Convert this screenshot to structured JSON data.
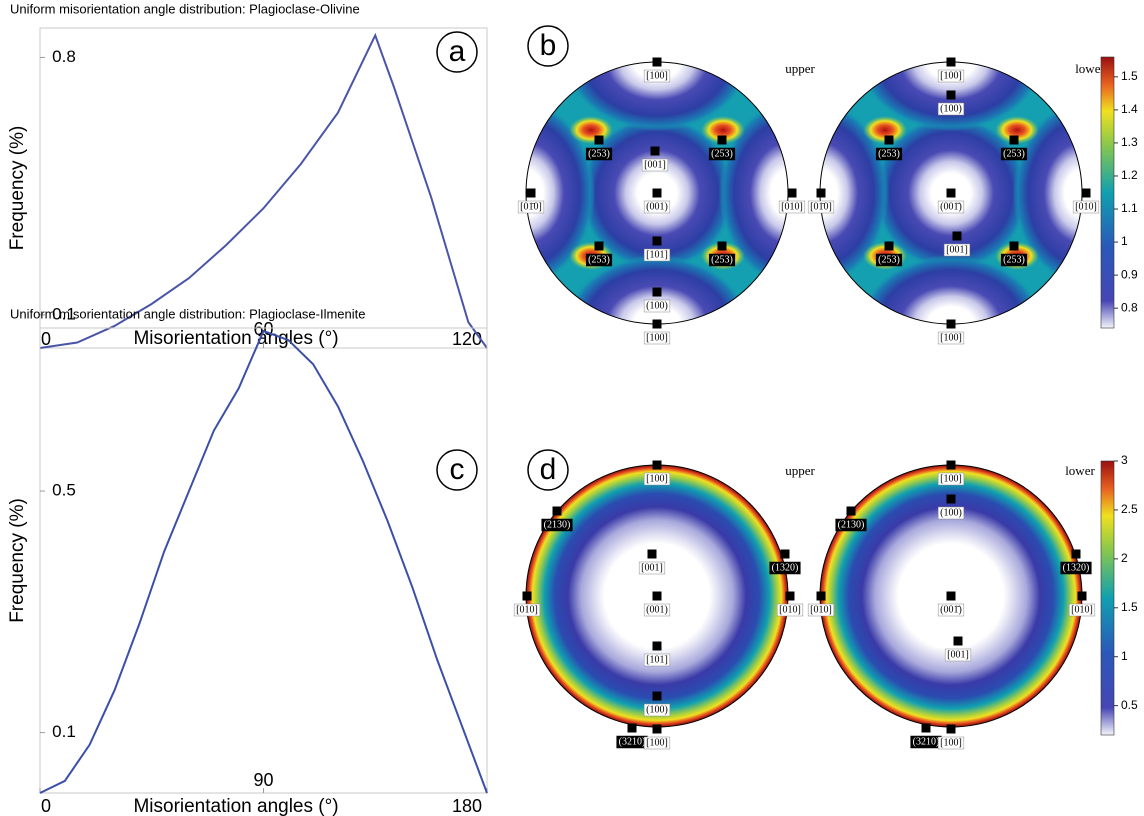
{
  "chart_data": [
    {
      "type": "line",
      "panel_label": "a",
      "title": "Uniform misorientation angle distribution: Plagioclase-Olivine",
      "x_label": "Misorientation angles (°)",
      "y_label": "Frequency (%)",
      "x": [
        0,
        10,
        20,
        30,
        40,
        50,
        60,
        70,
        80,
        90,
        95,
        100,
        105,
        110,
        115,
        120
      ],
      "series": [
        {
          "color": "#4a55a8",
          "values": [
            0.01,
            0.025,
            0.07,
            0.13,
            0.2,
            0.29,
            0.39,
            0.51,
            0.65,
            0.86,
            0.72,
            0.57,
            0.42,
            0.25,
            0.08,
            0.01
          ]
        }
      ],
      "xlim": [
        0,
        120
      ],
      "ylim": [
        0.01,
        0.88
      ],
      "xticks": [
        0,
        60,
        120
      ],
      "yticks": [
        0.1,
        0.8
      ]
    },
    {
      "type": "pole_figure",
      "panel_label": "b",
      "style": "cubic",
      "projections": [
        {
          "name": "upper",
          "labels": [
            "[100]",
            "(253)",
            "(253)",
            "[001]",
            "[01̄0]",
            "(001)",
            "[010]",
            "(253)",
            "[101]",
            "(253)",
            "(100)",
            "[100]"
          ]
        },
        {
          "name": "lower",
          "labels": [
            "[100]",
            "(100)",
            "(253)",
            "(253)",
            "[01̄0]",
            "(001̄)",
            "[010]",
            "(253)",
            "[001]",
            "(253)",
            "[100]"
          ]
        }
      ],
      "colorbar": {
        "lim": [
          0.74,
          1.56
        ],
        "ticks": [
          0.8,
          0.9,
          1,
          1.1,
          1.2,
          1.3,
          1.4,
          1.5
        ]
      }
    },
    {
      "type": "line",
      "panel_label": "c",
      "title": "Uniform misorientation angle distribution: Plagioclase-Ilmenite",
      "x_label": "Misorientation angles (°)",
      "y_label": "Frequency (%)",
      "x": [
        0,
        10,
        20,
        30,
        40,
        50,
        60,
        70,
        80,
        90,
        100,
        110,
        120,
        130,
        140,
        150,
        160,
        170,
        180
      ],
      "series": [
        {
          "color": "#3a4fa8",
          "values": [
            0,
            0.02,
            0.08,
            0.17,
            0.28,
            0.4,
            0.5,
            0.6,
            0.67,
            0.765,
            0.75,
            0.71,
            0.64,
            0.55,
            0.45,
            0.34,
            0.22,
            0.11,
            0
          ]
        }
      ],
      "xlim": [
        0,
        180
      ],
      "ylim": [
        0,
        0.77
      ],
      "xticks": [
        0,
        90,
        180
      ],
      "yticks": [
        0.1,
        0.5
      ]
    },
    {
      "type": "pole_figure",
      "panel_label": "d",
      "style": "radial",
      "projections": [
        {
          "name": "upper",
          "labels": [
            "[100]",
            "(2130)",
            "(1320)",
            "[001]",
            "[010]",
            "(001)",
            "[010]",
            "[101]",
            "(100)",
            "(3210)",
            "[100]"
          ]
        },
        {
          "name": "lower",
          "labels": [
            "[100]",
            "(100)",
            "(2130)",
            "(1320)",
            "[010]",
            "(001̄)",
            "[010]",
            "[001]",
            "(3210)",
            "[100]"
          ]
        }
      ],
      "colorbar": {
        "lim": [
          0.2,
          3
        ],
        "ticks": [
          0.5,
          1,
          1.5,
          2,
          2.5,
          3
        ]
      }
    }
  ]
}
